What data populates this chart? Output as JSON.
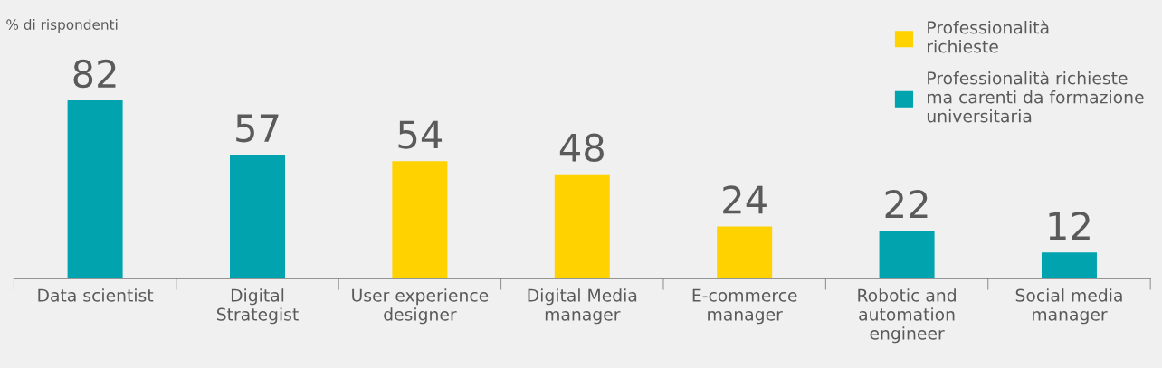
{
  "chart_data": {
    "type": "bar",
    "ylabel": "% di rispondenti",
    "categories": [
      "Data scientist",
      "Digital\nStrategist",
      "User experience\ndesigner",
      "Digital Media\nmanager",
      "E-commerce\nmanager",
      "Robotic and\nautomation\nengineer",
      "Social media\nmanager"
    ],
    "series": [
      {
        "name": "Professionalità\nrichieste",
        "color": "#ffd200",
        "values": [
          null,
          null,
          54,
          48,
          24,
          null,
          null
        ]
      },
      {
        "name": "Professionalità richieste\nma carenti da formazione\nuniversitaria",
        "color": "#00a3ae",
        "values": [
          82,
          57,
          null,
          null,
          null,
          22,
          12
        ]
      }
    ],
    "data_labels": true,
    "legend": "top right",
    "grid": false
  }
}
